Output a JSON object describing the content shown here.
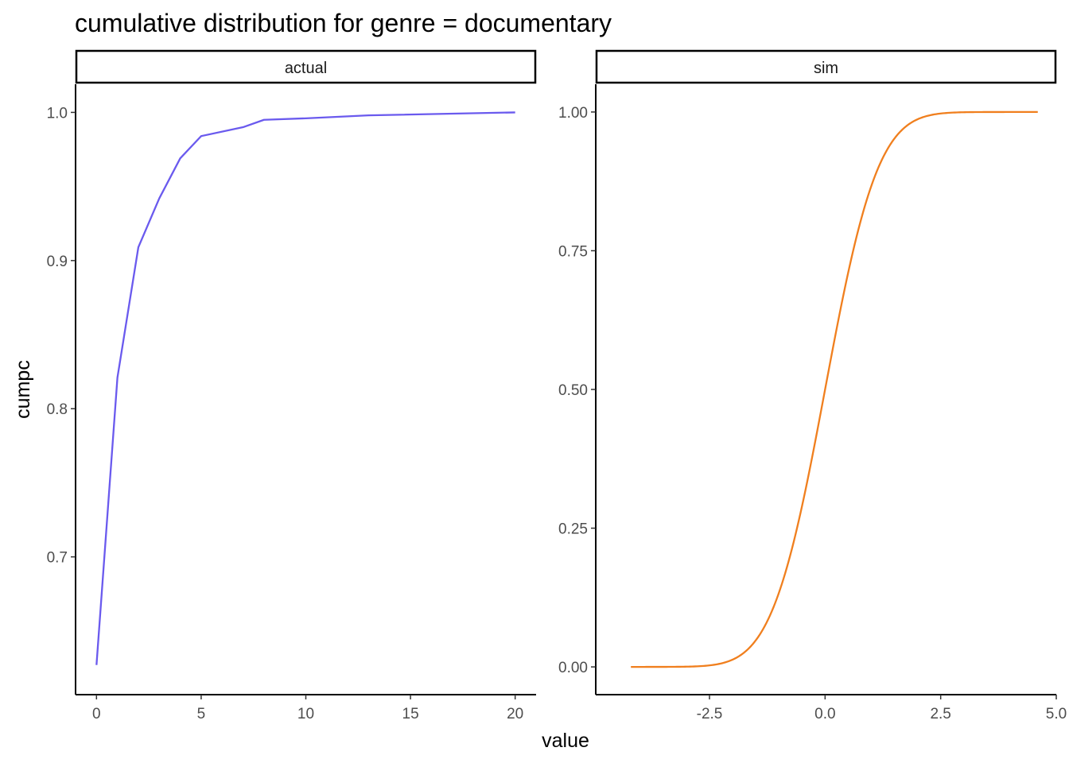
{
  "chart_data": {
    "type": "line",
    "title": "cumulative distribution for genre = documentary",
    "xlabel": "value",
    "ylabel": "cumpc",
    "grid": false,
    "legend": "none",
    "panels": [
      {
        "strip": "actual",
        "color": "#6A5AEE",
        "xlim": [
          -1,
          21
        ],
        "ylim": [
          0.607,
          1.019
        ],
        "xticks": [
          0,
          5,
          10,
          15,
          20
        ],
        "xtick_labels": [
          "0",
          "5",
          "10",
          "15",
          "20"
        ],
        "yticks": [
          0.7,
          0.8,
          0.9,
          1.0
        ],
        "ytick_labels": [
          "0.7",
          "0.8",
          "0.9",
          "1.0"
        ],
        "x": [
          0,
          1,
          2,
          3,
          4,
          5,
          7,
          8,
          10,
          13,
          20
        ],
        "y": [
          0.627,
          0.821,
          0.909,
          0.942,
          0.969,
          0.984,
          0.99,
          0.995,
          0.996,
          0.998,
          1.0
        ]
      },
      {
        "strip": "sim",
        "color": "#F07F1E",
        "xlim": [
          -4.96,
          5.0
        ],
        "ylim": [
          -0.05,
          1.05
        ],
        "xticks": [
          -2.5,
          0.0,
          2.5,
          5.0
        ],
        "xtick_labels": [
          "-2.5",
          "0.0",
          "2.5",
          "5.0"
        ],
        "yticks": [
          0.0,
          0.25,
          0.5,
          0.75,
          1.0
        ],
        "ytick_labels": [
          "0.00",
          "0.25",
          "0.50",
          "0.75",
          "1.00"
        ],
        "curve": "normal_cdf",
        "x_range": [
          -4.2,
          4.6
        ],
        "sigma": 0.9
      }
    ]
  }
}
